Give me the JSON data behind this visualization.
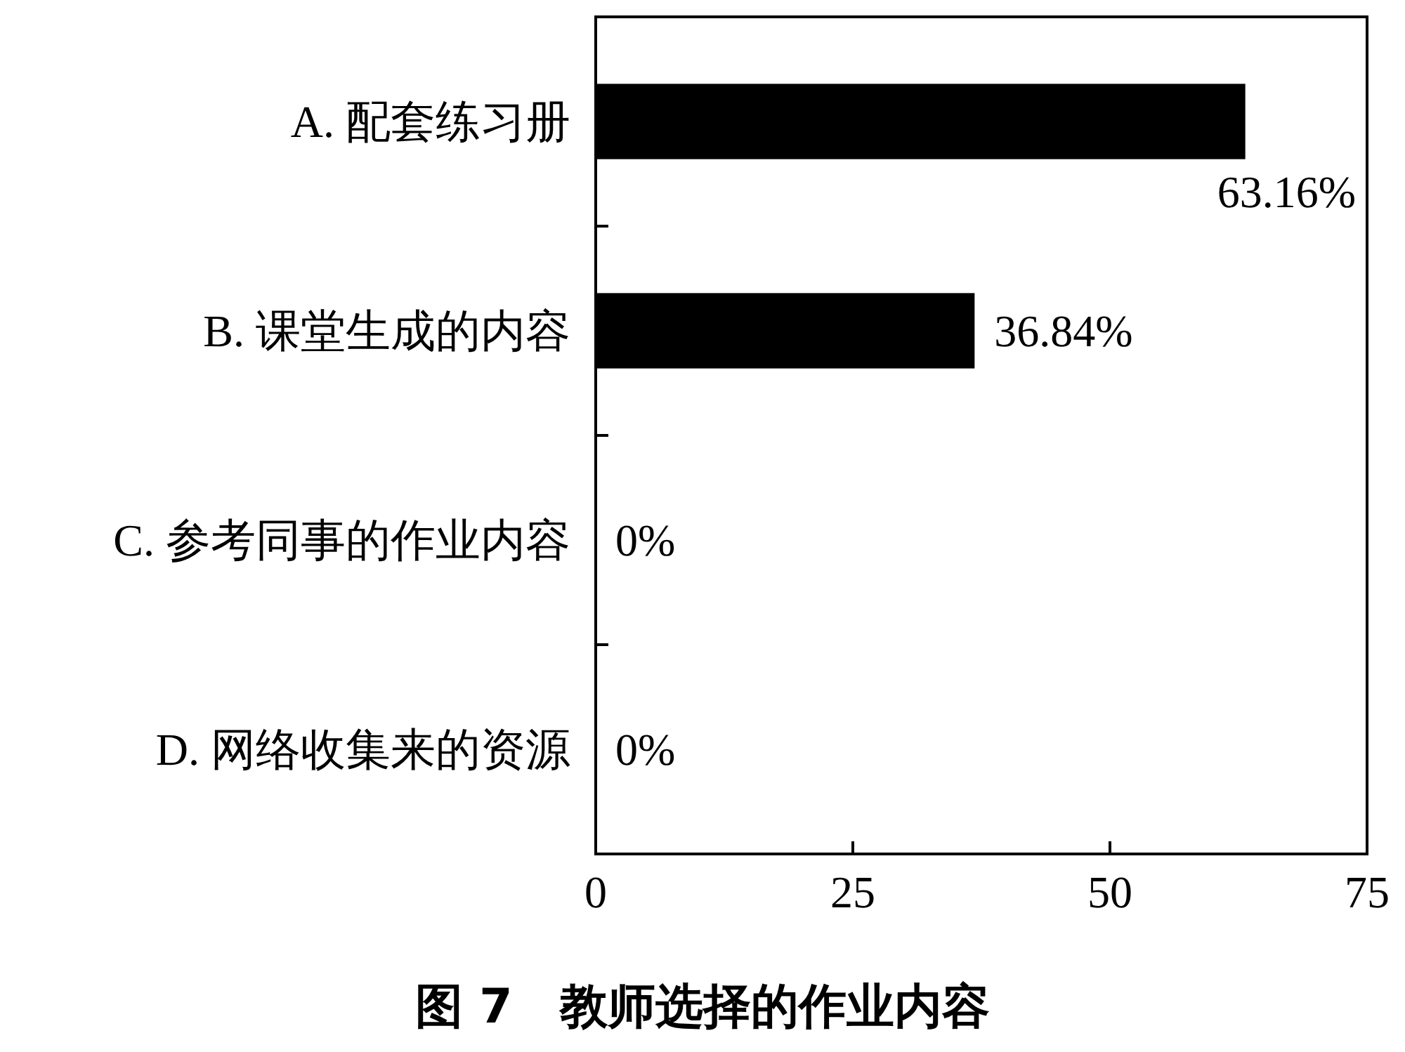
{
  "chart_data": {
    "type": "bar",
    "orientation": "horizontal",
    "title": "图 7　教师选择的作业内容",
    "categories": [
      "A. 配套练习册",
      "B. 课堂生成的内容",
      "C. 参考同事的作业内容",
      "D. 网络收集来的资源"
    ],
    "values": [
      63.16,
      36.84,
      0,
      0
    ],
    "value_labels": [
      "63.16%",
      "36.84%",
      "0%",
      "0%"
    ],
    "color": "#000000",
    "xlim": [
      0,
      75
    ],
    "xticks": [
      0,
      25,
      50,
      75
    ]
  }
}
